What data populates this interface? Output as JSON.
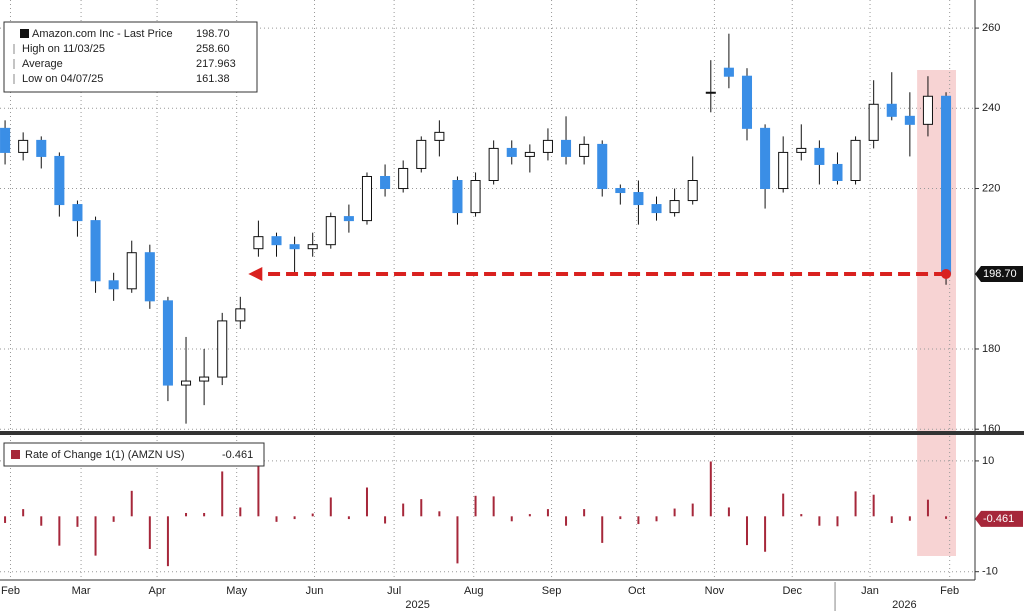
{
  "chart_data": [
    {
      "type": "candlestick",
      "xlim": [
        -0.28,
        53.6
      ],
      "xticks": [
        {
          "value": 0.3,
          "label": "Feb"
        },
        {
          "value": 4.2,
          "label": "Mar"
        },
        {
          "value": 8.4,
          "label": "Apr"
        },
        {
          "value": 12.8,
          "label": "May"
        },
        {
          "value": 17.1,
          "label": "Jun"
        },
        {
          "value": 21.5,
          "label": "Jul"
        },
        {
          "value": 25.9,
          "label": "Aug"
        },
        {
          "value": 30.2,
          "label": "Sep"
        },
        {
          "value": 34.9,
          "label": "Oct"
        },
        {
          "value": 39.2,
          "label": "Nov"
        },
        {
          "value": 43.5,
          "label": "Dec"
        },
        {
          "value": 47.8,
          "label": "Jan"
        },
        {
          "value": 52.2,
          "label": "Feb"
        }
      ],
      "year_ticks": [
        {
          "value": 22.8,
          "label": "2025"
        },
        {
          "value": 49.7,
          "label": "2026"
        }
      ],
      "ylim": [
        159.3,
        267
      ],
      "yticks": [
        160,
        180,
        220,
        240,
        260
      ],
      "grid": true,
      "legend": [
        {
          "name": "Amazon.com Inc - Last Price",
          "label": "198.70"
        },
        {
          "name": "High on 11/03/25",
          "label": "258.60"
        },
        {
          "name": "Average",
          "label": "217.963"
        },
        {
          "name": "Low on 04/07/25",
          "label": "161.38"
        }
      ],
      "series": [
        {
          "name": "Amazon.com Inc - Last Price",
          "up_color": "#ffffff",
          "down_color": "#3a8ee6",
          "open": [
            235,
            229,
            232,
            228,
            216,
            212,
            197,
            195,
            204,
            192,
            171,
            172,
            173,
            187,
            205,
            208,
            206,
            205,
            206,
            213,
            212,
            223,
            220,
            225,
            232,
            222,
            214,
            222,
            230,
            228,
            229,
            232,
            228,
            231,
            220,
            219,
            216,
            214,
            217,
            244,
            250,
            248,
            235,
            220,
            229,
            230,
            226,
            222,
            232,
            241,
            238,
            236,
            243
          ],
          "high": [
            237,
            234,
            233,
            229,
            217,
            213,
            199,
            207,
            206,
            193,
            183,
            180,
            189,
            193,
            212,
            209,
            208,
            209,
            214,
            216,
            224,
            226,
            227,
            233,
            237,
            223,
            224,
            232,
            232,
            231,
            235,
            238,
            233,
            232,
            221,
            222,
            218,
            220,
            228,
            252,
            258.6,
            250,
            236,
            233,
            236,
            232,
            229,
            233,
            247,
            249,
            244,
            248,
            244
          ],
          "low": [
            226,
            227,
            225,
            213,
            208,
            194,
            192,
            194,
            190,
            167,
            161.38,
            166,
            171,
            185,
            203,
            203,
            199,
            203,
            205,
            209,
            211,
            218,
            219,
            224,
            228,
            211,
            213,
            221,
            226,
            224,
            227,
            226,
            226,
            218,
            216,
            211,
            212,
            213,
            216,
            239,
            245,
            232,
            215,
            219,
            227,
            221,
            221,
            221,
            230,
            237,
            228,
            233,
            196
          ],
          "close": [
            229,
            232,
            228,
            216,
            212,
            197,
            195,
            204,
            192,
            171,
            172,
            173,
            187,
            190,
            208,
            206,
            205,
            206,
            213,
            212,
            223,
            220,
            225,
            232,
            234,
            214,
            222,
            230,
            228,
            229,
            232,
            228,
            231,
            220,
            219,
            216,
            214,
            217,
            222,
            244,
            248,
            235,
            220,
            229,
            230,
            226,
            222,
            232,
            241,
            238,
            236,
            243,
            198.7
          ],
          "value_labels": {
            "last": "198.70"
          }
        }
      ],
      "arrow_color": "#d9211f",
      "highlight_color": "#f4c4c4"
    },
    {
      "type": "bar",
      "ylim": [
        -11.5,
        14.5
      ],
      "yticks": [
        -10,
        10
      ],
      "legend": [
        {
          "name": "Rate of Change 1(1) (AMZN US)",
          "label": "-0.461"
        }
      ],
      "series": [
        {
          "name": "Rate of Change 1(1) (AMZN US)",
          "color": "#a6273a",
          "values": [
            -1.2,
            1.3,
            -1.7,
            -5.3,
            -1.9,
            -7.1,
            -1.0,
            4.6,
            -5.9,
            -9.0,
            0.6,
            0.6,
            8.1,
            1.6,
            9.5,
            -1.0,
            -0.5,
            0.5,
            3.4,
            -0.5,
            5.2,
            -1.3,
            2.3,
            3.1,
            0.9,
            -8.5,
            3.7,
            3.6,
            -0.9,
            0.4,
            1.3,
            -1.7,
            1.3,
            -4.8,
            -0.5,
            -1.4,
            -0.9,
            1.4,
            2.3,
            9.9,
            1.6,
            -5.2,
            -6.4,
            4.1,
            0.4,
            -1.7,
            -1.8,
            4.5,
            3.9,
            -1.2,
            -0.8,
            3.0,
            -0.461
          ],
          "value_labels": {
            "last": "-0.461"
          }
        }
      ]
    }
  ]
}
